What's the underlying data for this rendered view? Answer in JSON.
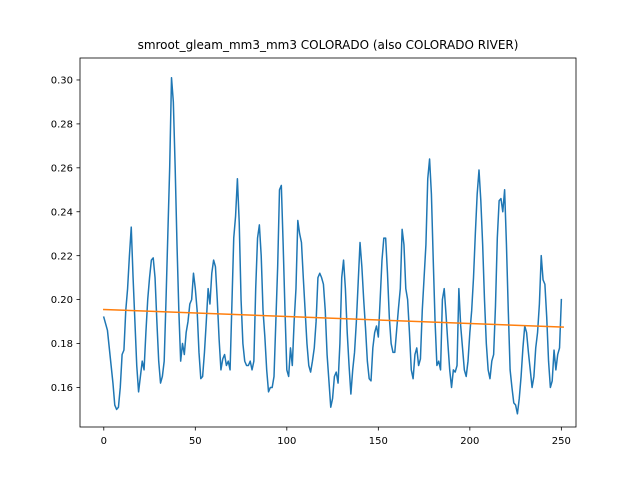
{
  "chart_data": {
    "type": "line",
    "title": "smroot_gleam_mm3_mm3 COLORADO (also COLORADO RIVER)",
    "xlabel": "",
    "ylabel": "",
    "xlim": [
      -13,
      258
    ],
    "ylim": [
      0.142,
      0.31
    ],
    "grid": false,
    "x_ticks": [
      0,
      50,
      100,
      150,
      200,
      250
    ],
    "x_tick_labels": [
      "0",
      "50",
      "100",
      "150",
      "200",
      "250"
    ],
    "y_ticks": [
      0.16,
      0.18,
      0.2,
      0.22,
      0.24,
      0.26,
      0.28,
      0.3
    ],
    "y_tick_labels": [
      "0.16",
      "0.18",
      "0.20",
      "0.22",
      "0.24",
      "0.26",
      "0.28",
      "0.30"
    ],
    "series": [
      {
        "name": "smroot",
        "color": "#1f77b4",
        "points": [
          [
            0,
            0.192
          ],
          [
            2,
            0.186
          ],
          [
            4,
            0.17
          ],
          [
            5,
            0.162
          ],
          [
            6,
            0.152
          ],
          [
            7,
            0.15
          ],
          [
            8,
            0.151
          ],
          [
            9,
            0.16
          ],
          [
            10,
            0.175
          ],
          [
            11,
            0.177
          ],
          [
            12,
            0.195
          ],
          [
            13,
            0.205
          ],
          [
            14,
            0.22
          ],
          [
            15,
            0.233
          ],
          [
            16,
            0.21
          ],
          [
            17,
            0.19
          ],
          [
            18,
            0.17
          ],
          [
            19,
            0.158
          ],
          [
            20,
            0.165
          ],
          [
            21,
            0.172
          ],
          [
            22,
            0.168
          ],
          [
            23,
            0.185
          ],
          [
            24,
            0.2
          ],
          [
            25,
            0.21
          ],
          [
            26,
            0.218
          ],
          [
            27,
            0.219
          ],
          [
            28,
            0.21
          ],
          [
            29,
            0.19
          ],
          [
            30,
            0.172
          ],
          [
            31,
            0.162
          ],
          [
            32,
            0.165
          ],
          [
            33,
            0.172
          ],
          [
            34,
            0.2
          ],
          [
            35,
            0.23
          ],
          [
            36,
            0.26
          ],
          [
            37,
            0.301
          ],
          [
            38,
            0.29
          ],
          [
            39,
            0.26
          ],
          [
            40,
            0.225
          ],
          [
            41,
            0.195
          ],
          [
            42,
            0.172
          ],
          [
            43,
            0.18
          ],
          [
            44,
            0.175
          ],
          [
            45,
            0.185
          ],
          [
            46,
            0.19
          ],
          [
            47,
            0.198
          ],
          [
            48,
            0.2
          ],
          [
            49,
            0.212
          ],
          [
            50,
            0.205
          ],
          [
            51,
            0.195
          ],
          [
            52,
            0.176
          ],
          [
            53,
            0.164
          ],
          [
            54,
            0.165
          ],
          [
            55,
            0.176
          ],
          [
            56,
            0.19
          ],
          [
            57,
            0.205
          ],
          [
            58,
            0.198
          ],
          [
            59,
            0.212
          ],
          [
            60,
            0.218
          ],
          [
            61,
            0.215
          ],
          [
            62,
            0.2
          ],
          [
            63,
            0.182
          ],
          [
            64,
            0.168
          ],
          [
            65,
            0.173
          ],
          [
            66,
            0.175
          ],
          [
            67,
            0.17
          ],
          [
            68,
            0.172
          ],
          [
            69,
            0.168
          ],
          [
            70,
            0.198
          ],
          [
            71,
            0.228
          ],
          [
            72,
            0.238
          ],
          [
            73,
            0.255
          ],
          [
            74,
            0.235
          ],
          [
            75,
            0.2
          ],
          [
            76,
            0.18
          ],
          [
            77,
            0.172
          ],
          [
            78,
            0.17
          ],
          [
            79,
            0.17
          ],
          [
            80,
            0.172
          ],
          [
            81,
            0.168
          ],
          [
            82,
            0.172
          ],
          [
            83,
            0.205
          ],
          [
            84,
            0.228
          ],
          [
            85,
            0.234
          ],
          [
            86,
            0.22
          ],
          [
            87,
            0.195
          ],
          [
            88,
            0.183
          ],
          [
            89,
            0.168
          ],
          [
            90,
            0.158
          ],
          [
            91,
            0.16
          ],
          [
            92,
            0.16
          ],
          [
            93,
            0.165
          ],
          [
            94,
            0.19
          ],
          [
            95,
            0.215
          ],
          [
            96,
            0.25
          ],
          [
            97,
            0.252
          ],
          [
            98,
            0.225
          ],
          [
            99,
            0.195
          ],
          [
            100,
            0.168
          ],
          [
            101,
            0.165
          ],
          [
            102,
            0.178
          ],
          [
            103,
            0.17
          ],
          [
            104,
            0.19
          ],
          [
            105,
            0.205
          ],
          [
            106,
            0.236
          ],
          [
            107,
            0.23
          ],
          [
            108,
            0.226
          ],
          [
            109,
            0.21
          ],
          [
            110,
            0.195
          ],
          [
            111,
            0.18
          ],
          [
            112,
            0.17
          ],
          [
            113,
            0.167
          ],
          [
            114,
            0.172
          ],
          [
            115,
            0.178
          ],
          [
            116,
            0.19
          ],
          [
            117,
            0.21
          ],
          [
            118,
            0.212
          ],
          [
            119,
            0.21
          ],
          [
            120,
            0.207
          ],
          [
            121,
            0.195
          ],
          [
            122,
            0.175
          ],
          [
            123,
            0.163
          ],
          [
            124,
            0.151
          ],
          [
            125,
            0.155
          ],
          [
            126,
            0.165
          ],
          [
            127,
            0.167
          ],
          [
            128,
            0.162
          ],
          [
            129,
            0.18
          ],
          [
            130,
            0.21
          ],
          [
            131,
            0.218
          ],
          [
            132,
            0.205
          ],
          [
            133,
            0.185
          ],
          [
            134,
            0.17
          ],
          [
            135,
            0.157
          ],
          [
            136,
            0.168
          ],
          [
            137,
            0.176
          ],
          [
            138,
            0.19
          ],
          [
            139,
            0.208
          ],
          [
            140,
            0.226
          ],
          [
            141,
            0.215
          ],
          [
            142,
            0.2
          ],
          [
            143,
            0.187
          ],
          [
            144,
            0.172
          ],
          [
            145,
            0.164
          ],
          [
            146,
            0.163
          ],
          [
            147,
            0.178
          ],
          [
            148,
            0.185
          ],
          [
            149,
            0.188
          ],
          [
            150,
            0.183
          ],
          [
            151,
            0.2
          ],
          [
            152,
            0.218
          ],
          [
            153,
            0.228
          ],
          [
            154,
            0.228
          ],
          [
            155,
            0.212
          ],
          [
            156,
            0.192
          ],
          [
            157,
            0.18
          ],
          [
            158,
            0.176
          ],
          [
            159,
            0.176
          ],
          [
            160,
            0.186
          ],
          [
            161,
            0.196
          ],
          [
            162,
            0.205
          ],
          [
            163,
            0.232
          ],
          [
            164,
            0.225
          ],
          [
            165,
            0.205
          ],
          [
            166,
            0.2
          ],
          [
            167,
            0.185
          ],
          [
            168,
            0.168
          ],
          [
            169,
            0.164
          ],
          [
            170,
            0.175
          ],
          [
            171,
            0.178
          ],
          [
            172,
            0.17
          ],
          [
            173,
            0.173
          ],
          [
            174,
            0.195
          ],
          [
            175,
            0.21
          ],
          [
            176,
            0.225
          ],
          [
            177,
            0.255
          ],
          [
            178,
            0.264
          ],
          [
            179,
            0.248
          ],
          [
            180,
            0.218
          ],
          [
            181,
            0.19
          ],
          [
            182,
            0.17
          ],
          [
            183,
            0.172
          ],
          [
            184,
            0.168
          ],
          [
            185,
            0.2
          ],
          [
            186,
            0.205
          ],
          [
            187,
            0.193
          ],
          [
            188,
            0.18
          ],
          [
            189,
            0.168
          ],
          [
            190,
            0.16
          ],
          [
            191,
            0.168
          ],
          [
            192,
            0.167
          ],
          [
            193,
            0.17
          ],
          [
            194,
            0.205
          ],
          [
            195,
            0.188
          ],
          [
            196,
            0.178
          ],
          [
            197,
            0.168
          ],
          [
            198,
            0.165
          ],
          [
            199,
            0.172
          ],
          [
            200,
            0.185
          ],
          [
            201,
            0.195
          ],
          [
            202,
            0.21
          ],
          [
            203,
            0.23
          ],
          [
            204,
            0.248
          ],
          [
            205,
            0.259
          ],
          [
            206,
            0.245
          ],
          [
            207,
            0.225
          ],
          [
            208,
            0.2
          ],
          [
            209,
            0.18
          ],
          [
            210,
            0.168
          ],
          [
            211,
            0.164
          ],
          [
            212,
            0.172
          ],
          [
            213,
            0.175
          ],
          [
            214,
            0.197
          ],
          [
            215,
            0.228
          ],
          [
            216,
            0.245
          ],
          [
            217,
            0.246
          ],
          [
            218,
            0.24
          ],
          [
            219,
            0.25
          ],
          [
            220,
            0.225
          ],
          [
            221,
            0.195
          ],
          [
            222,
            0.168
          ],
          [
            223,
            0.16
          ],
          [
            224,
            0.153
          ],
          [
            225,
            0.152
          ],
          [
            226,
            0.148
          ],
          [
            227,
            0.155
          ],
          [
            228,
            0.165
          ],
          [
            229,
            0.178
          ],
          [
            230,
            0.188
          ],
          [
            231,
            0.185
          ],
          [
            232,
            0.176
          ],
          [
            233,
            0.168
          ],
          [
            234,
            0.16
          ],
          [
            235,
            0.165
          ],
          [
            236,
            0.178
          ],
          [
            237,
            0.185
          ],
          [
            238,
            0.198
          ],
          [
            239,
            0.22
          ],
          [
            240,
            0.209
          ],
          [
            241,
            0.207
          ],
          [
            242,
            0.192
          ],
          [
            243,
            0.172
          ],
          [
            244,
            0.16
          ],
          [
            245,
            0.163
          ],
          [
            246,
            0.177
          ],
          [
            247,
            0.168
          ],
          [
            248,
            0.175
          ],
          [
            249,
            0.178
          ],
          [
            250,
            0.2
          ]
        ]
      },
      {
        "name": "trend",
        "color": "#ff7f0e",
        "points": [
          [
            0,
            0.1955
          ],
          [
            251,
            0.1875
          ]
        ]
      }
    ]
  }
}
